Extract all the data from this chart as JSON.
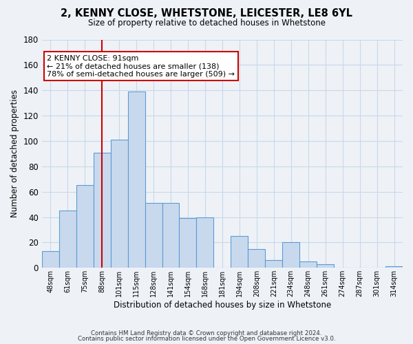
{
  "title": "2, KENNY CLOSE, WHETSTONE, LEICESTER, LE8 6YL",
  "subtitle": "Size of property relative to detached houses in Whetstone",
  "xlabel": "Distribution of detached houses by size in Whetstone",
  "ylabel": "Number of detached properties",
  "bar_labels": [
    "48sqm",
    "61sqm",
    "75sqm",
    "88sqm",
    "101sqm",
    "115sqm",
    "128sqm",
    "141sqm",
    "154sqm",
    "168sqm",
    "181sqm",
    "194sqm",
    "208sqm",
    "221sqm",
    "234sqm",
    "248sqm",
    "261sqm",
    "274sqm",
    "287sqm",
    "301sqm",
    "314sqm"
  ],
  "bar_values": [
    13,
    45,
    65,
    91,
    101,
    139,
    51,
    51,
    39,
    40,
    0,
    25,
    15,
    6,
    20,
    5,
    3,
    0,
    0,
    0,
    1
  ],
  "bar_color": "#c9d9ed",
  "bar_edge_color": "#5b9bd5",
  "vline_x": 3.5,
  "vline_color": "#cc0000",
  "annotation_text": "2 KENNY CLOSE: 91sqm\n← 21% of detached houses are smaller (138)\n78% of semi-detached houses are larger (509) →",
  "annotation_box_color": "#ffffff",
  "annotation_box_edge": "#cc0000",
  "ylim": [
    0,
    180
  ],
  "yticks": [
    0,
    20,
    40,
    60,
    80,
    100,
    120,
    140,
    160,
    180
  ],
  "footer_line1": "Contains HM Land Registry data © Crown copyright and database right 2024.",
  "footer_line2": "Contains public sector information licensed under the Open Government Licence v3.0.",
  "bg_color": "#eef2f7",
  "plot_bg_color": "#eef2f7",
  "grid_color": "#c8d8e8"
}
